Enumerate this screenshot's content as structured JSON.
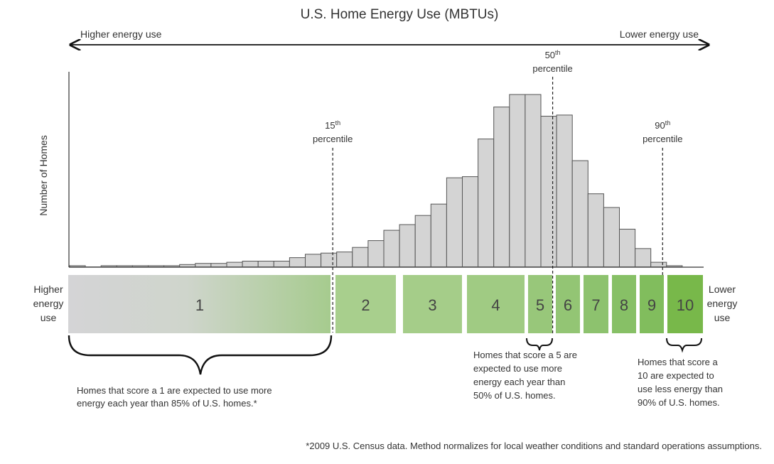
{
  "chart_data": {
    "type": "bar",
    "title": "U.S. Home Energy Use (MBTUs)",
    "ylabel": "Number of Homes",
    "xlabel": "",
    "direction_left": "Higher energy use",
    "direction_right": "Lower energy use",
    "histogram_values": [
      1,
      0,
      1,
      1,
      1,
      1,
      1,
      2,
      3,
      3,
      4,
      5,
      5,
      5,
      8,
      11,
      12,
      13,
      17,
      23,
      32,
      37,
      45,
      55,
      78,
      79,
      112,
      140,
      151,
      151,
      132,
      133,
      93,
      64,
      52,
      33,
      16,
      4,
      1
    ],
    "ylim": [
      0,
      160
    ],
    "grid": false,
    "percentiles": [
      {
        "number": "15",
        "suffix": "th",
        "word": "percentile",
        "after_bar_index": 16
      },
      {
        "number": "50",
        "suffix": "th",
        "word": "percentile",
        "after_bar_index": 30
      },
      {
        "number": "90",
        "suffix": "th",
        "word": "percentile",
        "after_bar_index": 37
      }
    ],
    "score_bands": [
      "1",
      "2",
      "3",
      "4",
      "5",
      "6",
      "7",
      "8",
      "9",
      "10"
    ],
    "band_left_label": [
      "Higher",
      "energy",
      "use"
    ],
    "band_right_label": [
      "Lower",
      "energy",
      "use"
    ],
    "annotations": [
      {
        "lines": [
          "Homes that score a 1 are expected to use more",
          "energy each year than 85% of U.S. homes.*"
        ]
      },
      {
        "lines": [
          "Homes that score a 5 are",
          "expected to use more",
          "energy each year than",
          "50% of U.S. homes."
        ]
      },
      {
        "lines": [
          "Homes that score a",
          "10 are expected to",
          "use less energy than",
          "90% of U.S. homes."
        ]
      }
    ],
    "footnote": "*2009 U.S. Census data. Method normalizes for local weather conditions and standard operations assumptions.",
    "colors": {
      "bar_fill": "#d4d4d4",
      "bar_stroke": "#555555",
      "band_gray": "#d6d6d8",
      "band_green_light": "#a9cf8c",
      "band_green_dark": "#79b949",
      "text": "#333333"
    }
  }
}
